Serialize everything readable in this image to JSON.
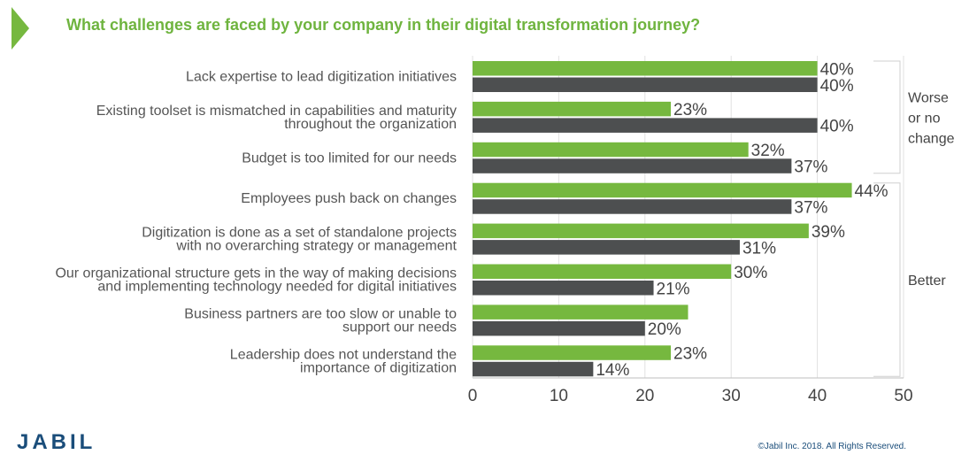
{
  "header": {
    "title": "What challenges are faced by your company in their digital transformation journey?"
  },
  "chart_data": {
    "type": "bar",
    "orientation": "horizontal",
    "title": "What challenges are faced by your company in their digital transformation journey?",
    "categories": [
      [
        "Lack expertise to lead digitization initiatives"
      ],
      [
        "Existing toolset is mismatched in capabilities and maturity",
        "throughout the organization"
      ],
      [
        "Budget is too limited for our needs"
      ],
      [
        "Employees push back on changes"
      ],
      [
        "Digitization is done as a set of standalone projects",
        "with no overarching strategy or management"
      ],
      [
        "Our organizational structure gets in the way of making decisions",
        "and implementing technology needed for digital initiatives"
      ],
      [
        "Business partners are too slow or unable to",
        "support our needs"
      ],
      [
        "Leadership does not understand the",
        "importance of digitization"
      ]
    ],
    "series": [
      {
        "name": "green",
        "color": "#76b83f",
        "values": [
          40,
          23,
          32,
          44,
          39,
          30,
          25,
          23
        ],
        "labels": [
          "40%",
          "23%",
          "32%",
          "44%",
          "39%",
          "30%",
          "",
          "23%"
        ]
      },
      {
        "name": "gray",
        "color": "#4d4f50",
        "values": [
          40,
          40,
          37,
          37,
          31,
          21,
          20,
          14
        ],
        "labels": [
          "40%",
          "40%",
          "37%",
          "37%",
          "31%",
          "21%",
          "20%",
          "14%"
        ]
      }
    ],
    "xlim": [
      0,
      50
    ],
    "xticks": [
      "0",
      "10",
      "20",
      "30",
      "40",
      "50"
    ],
    "groups": [
      {
        "lines": [
          "Worse",
          "or no",
          "change"
        ],
        "first": 0,
        "last": 2
      },
      {
        "lines": [
          "Better"
        ],
        "first": 3,
        "last": 7
      }
    ]
  },
  "footer": {
    "logo": "JABIL",
    "copyright": "©Jabil Inc. 2018. All Rights Reserved."
  }
}
